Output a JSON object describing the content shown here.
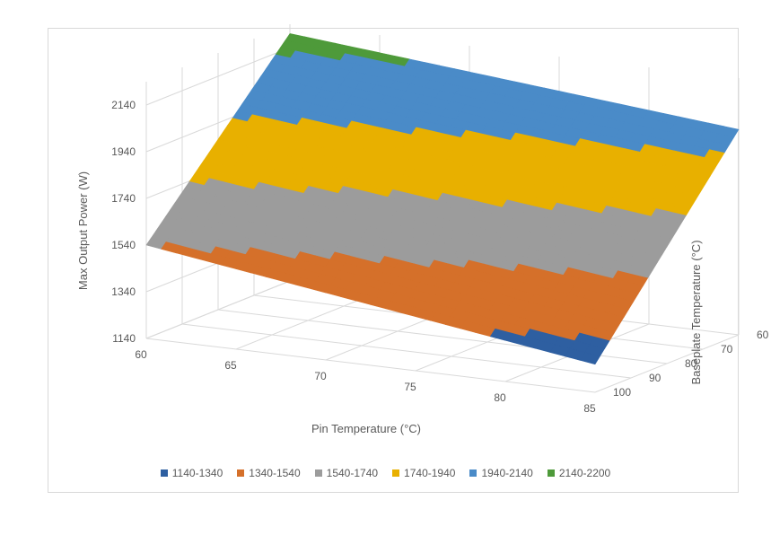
{
  "chart_data": {
    "type": "surface",
    "title": "",
    "xlabel": "Pin Temperature (°C)",
    "ylabel": "Baseplate Temperature (°C)",
    "zlabel": "Max Output Power (W)",
    "x_ticks": [
      "60",
      "65",
      "70",
      "75",
      "80",
      "85"
    ],
    "y_ticks": [
      "60",
      "70",
      "80",
      "90",
      "100"
    ],
    "z_ticks": [
      "1140",
      "1340",
      "1540",
      "1740",
      "1940",
      "2140"
    ],
    "zlim": [
      1140,
      2140
    ],
    "corners": [
      {
        "pin": 60,
        "baseplate": 60,
        "power": 2200
      },
      {
        "pin": 85,
        "baseplate": 60,
        "power": 2020
      },
      {
        "pin": 60,
        "baseplate": 100,
        "power": 1540
      },
      {
        "pin": 85,
        "baseplate": 100,
        "power": 1260
      }
    ],
    "legend": [
      {
        "label": "1140-1340",
        "color": "#2e5fa1"
      },
      {
        "label": "1340-1540",
        "color": "#d5702a"
      },
      {
        "label": "1540-1740",
        "color": "#9c9c9c"
      },
      {
        "label": "1740-1940",
        "color": "#e8b000"
      },
      {
        "label": "1940-2140",
        "color": "#4a8bc8"
      },
      {
        "label": "2140-2200",
        "color": "#4e9a3a"
      }
    ],
    "legend_position": "bottom",
    "grid": true
  }
}
